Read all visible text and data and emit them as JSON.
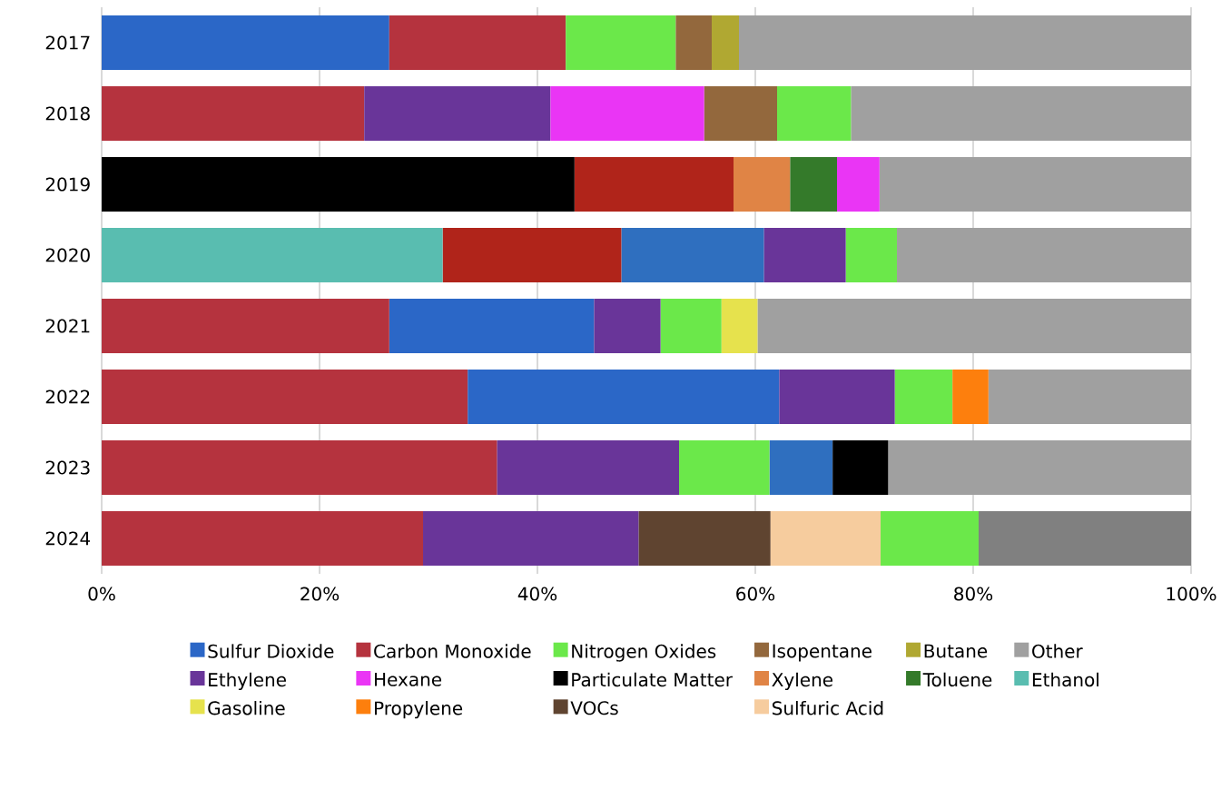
{
  "chart_data": {
    "type": "bar",
    "orientation": "horizontal",
    "categories": [
      "2017",
      "2018",
      "2019",
      "2020",
      "2021",
      "2022",
      "2023",
      "2024"
    ],
    "xlim": [
      0,
      100
    ],
    "xticks": [
      {
        "value": 0,
        "label": "0%"
      },
      {
        "value": 20,
        "label": "20%"
      },
      {
        "value": 40,
        "label": "40%"
      },
      {
        "value": 60,
        "label": "60%"
      },
      {
        "value": 80,
        "label": "80%"
      },
      {
        "value": 100,
        "label": "100%"
      }
    ],
    "grid": "x",
    "legend": "bottom",
    "series": [
      {
        "name": "Sulfur Dioxide",
        "color": "#2b67c7",
        "colors": [
          null,
          null,
          null,
          "#2f6fbf",
          null,
          null,
          "#2f6fbf",
          null
        ],
        "values": [
          26.4,
          null,
          null,
          13.1,
          18.8,
          28.6,
          5.8,
          null
        ],
        "base": [
          0,
          null,
          null,
          47.7,
          26.4,
          33.6,
          61.3,
          null
        ]
      },
      {
        "name": "Carbon Monoxide",
        "color": "#b5333e",
        "colors": [
          null,
          null,
          "#b0241a",
          "#b0241a",
          null,
          null,
          null,
          null
        ],
        "values": [
          16.2,
          24.1,
          14.6,
          16.4,
          26.4,
          33.6,
          36.3,
          29.5
        ],
        "base": [
          26.4,
          0,
          43.4,
          31.3,
          0,
          0,
          0,
          0
        ]
      },
      {
        "name": "Nitrogen Oxides",
        "color": "#6be84a",
        "values": [
          10.1,
          6.8,
          null,
          4.7,
          5.6,
          5.3,
          8.3,
          9.0
        ],
        "base": [
          42.6,
          62.0,
          null,
          68.3,
          51.3,
          72.8,
          53.0,
          71.5
        ]
      },
      {
        "name": "Isopentane",
        "color": "#93683d",
        "values": [
          3.3,
          6.7,
          null,
          null,
          null,
          null,
          null,
          null
        ],
        "base": [
          52.7,
          55.3,
          null,
          null,
          null,
          null,
          null,
          null
        ]
      },
      {
        "name": "Butane",
        "color": "#b0a832",
        "values": [
          2.5,
          null,
          null,
          null,
          null,
          null,
          null,
          null
        ],
        "base": [
          56.0,
          null,
          null,
          null,
          null,
          null,
          null,
          null
        ]
      },
      {
        "name": "Other",
        "color": "#a0a0a0",
        "colors": [
          null,
          null,
          null,
          null,
          null,
          null,
          null,
          "#808080"
        ],
        "values": [
          41.5,
          31.2,
          28.6,
          27.0,
          39.8,
          18.6,
          27.8,
          19.5
        ],
        "base": [
          58.5,
          68.8,
          71.4,
          73.0,
          60.2,
          81.4,
          72.2,
          80.5
        ]
      },
      {
        "name": "Ethylene",
        "color": "#693599",
        "values": [
          null,
          17.1,
          null,
          7.5,
          6.1,
          10.6,
          16.7,
          19.8
        ],
        "base": [
          null,
          24.1,
          null,
          60.8,
          45.2,
          62.2,
          36.3,
          29.5
        ]
      },
      {
        "name": "Hexane",
        "color": "#ea35f5",
        "values": [
          null,
          14.1,
          3.9,
          null,
          null,
          null,
          null,
          null
        ],
        "base": [
          null,
          41.2,
          67.5,
          null,
          null,
          null,
          null,
          null
        ]
      },
      {
        "name": "Particulate Matter",
        "color": "#000000",
        "values": [
          null,
          null,
          43.4,
          null,
          null,
          null,
          5.1,
          null
        ],
        "base": [
          null,
          null,
          0,
          null,
          null,
          null,
          67.1,
          null
        ]
      },
      {
        "name": "Xylene",
        "color": "#e08445",
        "values": [
          null,
          null,
          5.2,
          null,
          null,
          null,
          null,
          null
        ],
        "base": [
          null,
          null,
          58.0,
          null,
          null,
          null,
          null,
          null
        ]
      },
      {
        "name": "Toluene",
        "color": "#347a2a",
        "values": [
          null,
          null,
          4.3,
          null,
          null,
          null,
          null,
          null
        ],
        "base": [
          null,
          null,
          63.2,
          null,
          null,
          null,
          null,
          null
        ]
      },
      {
        "name": "Ethanol",
        "color": "#59bdb0",
        "values": [
          null,
          null,
          null,
          31.3,
          null,
          null,
          null,
          null
        ],
        "base": [
          null,
          null,
          null,
          0,
          null,
          null,
          null,
          null
        ]
      },
      {
        "name": "Gasoline",
        "color": "#e6e24d",
        "values": [
          null,
          null,
          null,
          null,
          3.3,
          null,
          null,
          null
        ],
        "base": [
          null,
          null,
          null,
          null,
          56.9,
          null,
          null,
          null
        ]
      },
      {
        "name": "Propylene",
        "color": "#fd7f0d",
        "values": [
          null,
          null,
          null,
          null,
          null,
          3.3,
          null,
          null
        ],
        "base": [
          null,
          null,
          null,
          null,
          null,
          78.1,
          null,
          null
        ]
      },
      {
        "name": "VOCs",
        "color": "#5f4430",
        "values": [
          null,
          null,
          null,
          null,
          null,
          null,
          null,
          12.1
        ],
        "base": [
          null,
          null,
          null,
          null,
          null,
          null,
          null,
          49.3
        ]
      },
      {
        "name": "Sulfuric Acid",
        "color": "#f6cc9e",
        "values": [
          null,
          null,
          null,
          null,
          null,
          null,
          null,
          10.1
        ],
        "base": [
          null,
          null,
          null,
          null,
          null,
          null,
          null,
          61.4
        ]
      }
    ]
  }
}
